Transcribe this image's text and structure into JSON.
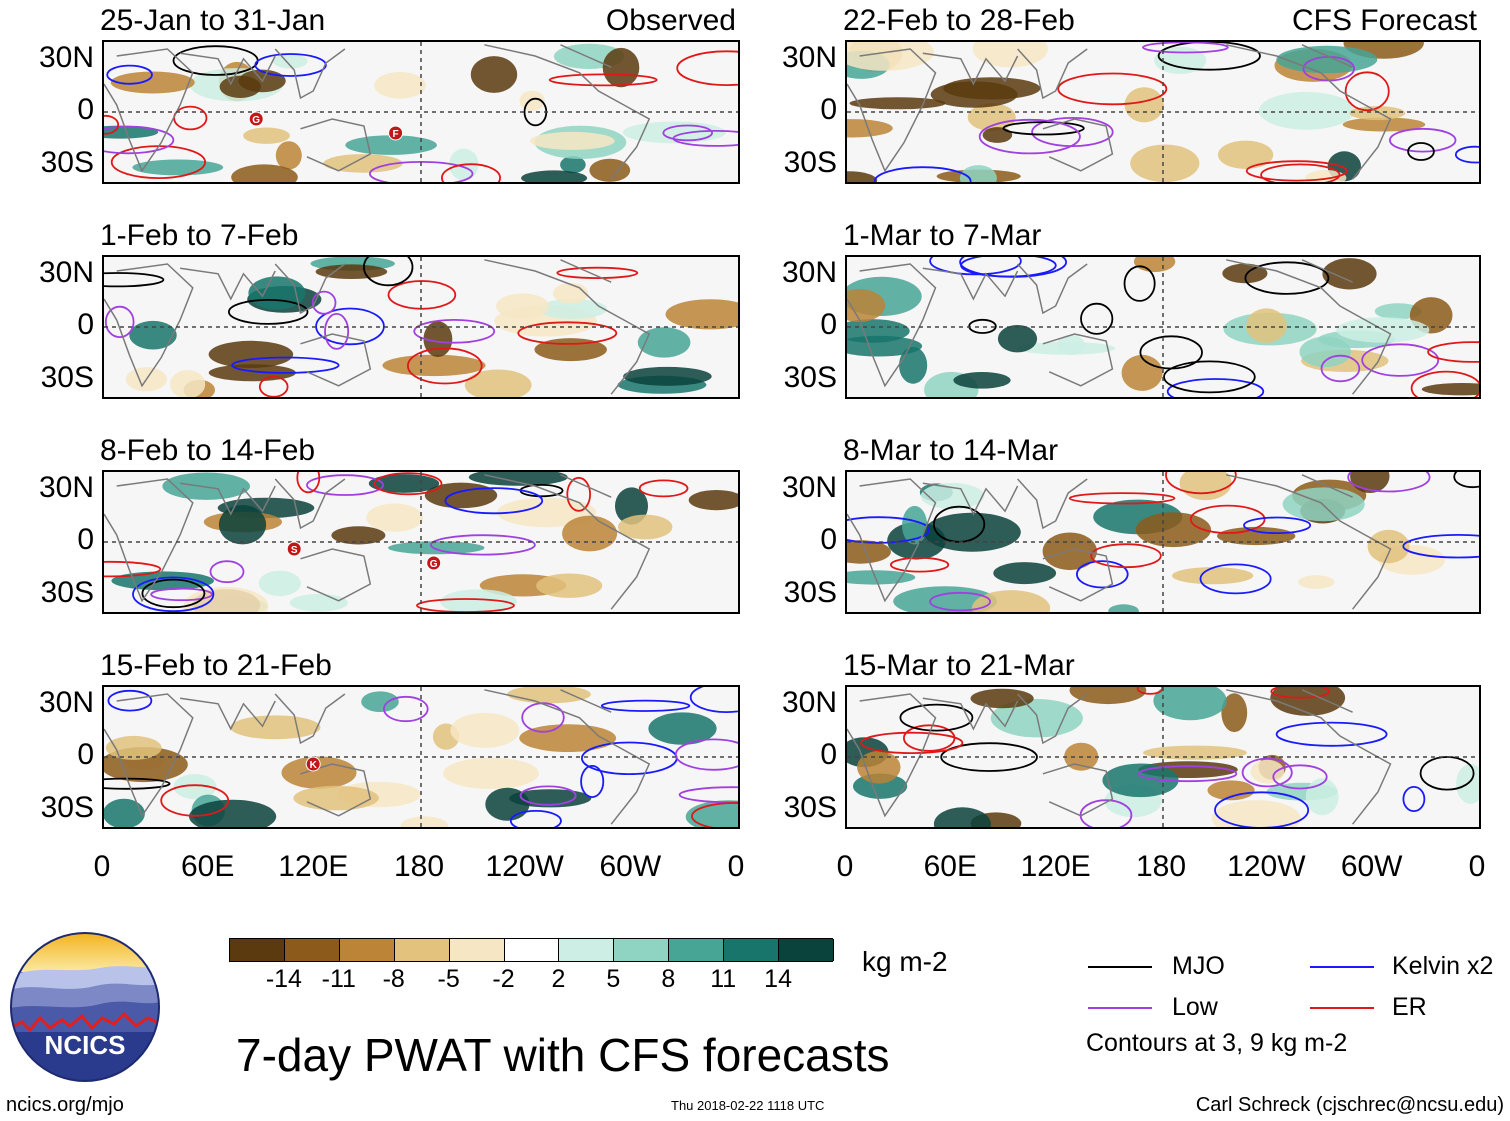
{
  "panels": {
    "obs": [
      {
        "date": "25-Jan to 31-Jan",
        "source": "Observed",
        "storms": [
          "G",
          "F"
        ]
      },
      {
        "date": "1-Feb to 7-Feb"
      },
      {
        "date": "8-Feb to 14-Feb",
        "storms": [
          "S",
          "G"
        ]
      },
      {
        "date": "15-Feb to 21-Feb",
        "storms": [
          "K"
        ]
      }
    ],
    "fcst": [
      {
        "date": "22-Feb to 28-Feb",
        "source": "CFS Forecast"
      },
      {
        "date": "1-Mar to 7-Mar"
      },
      {
        "date": "8-Mar to 14-Mar"
      },
      {
        "date": "15-Mar to 21-Mar"
      }
    ]
  },
  "lat_labels": [
    "30N",
    "0",
    "30S"
  ],
  "lon_labels": [
    "0",
    "60E",
    "120E",
    "180",
    "120W",
    "60W",
    "0"
  ],
  "colorbar": {
    "colors": [
      "#5a3a0e",
      "#8c5a1a",
      "#bb8436",
      "#e2c27d",
      "#f6e6c4",
      "#ffffff",
      "#cdeee4",
      "#8fd3c2",
      "#47a596",
      "#18756c",
      "#0a423c"
    ],
    "labels": [
      "-14",
      "-11",
      "-8",
      "-5",
      "-2",
      "2",
      "5",
      "8",
      "11",
      "14"
    ],
    "units": "kg m-2"
  },
  "legend": {
    "items": [
      {
        "label": "MJO",
        "color": "#000000"
      },
      {
        "label": "Kelvin x2",
        "color": "#1a1aff"
      },
      {
        "label": "Low",
        "color": "#a040e0"
      },
      {
        "label": "ER",
        "color": "#e01818"
      }
    ],
    "note": "Contours at 3, 9 kg m-2"
  },
  "logo_text": "NCICS",
  "title": "7-day PWAT with CFS forecasts",
  "footer": {
    "left": "ncics.org/mjo",
    "center": "Thu 2018-02-22 1118 UTC",
    "right": "Carl Schreck (cjschrec@ncsu.edu)"
  }
}
